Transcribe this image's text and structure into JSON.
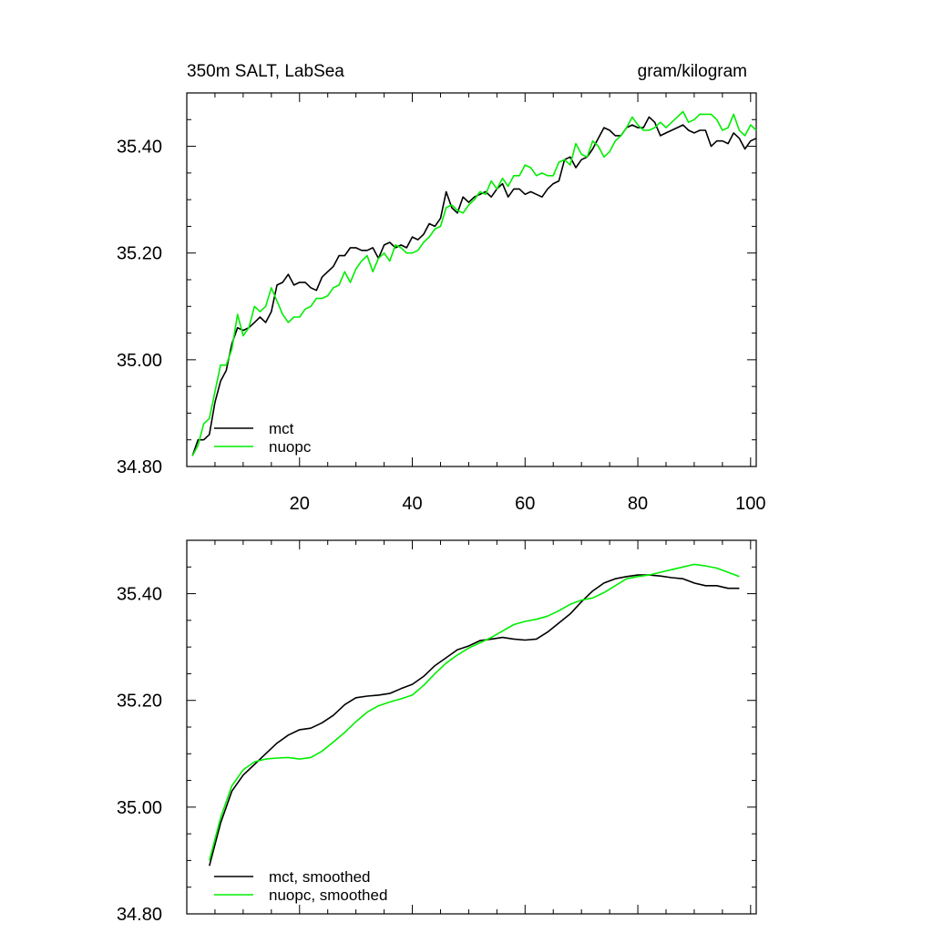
{
  "chart_data": [
    {
      "type": "line",
      "title_left": "350m SALT, LabSea",
      "title_right": "gram/kilogram",
      "xlim": [
        0,
        101
      ],
      "ylim": [
        34.8,
        35.5
      ],
      "xticks": [
        20,
        40,
        60,
        80,
        100
      ],
      "xtick_labels": [
        "20",
        "40",
        "60",
        "80",
        "100"
      ],
      "yticks": [
        34.8,
        35.0,
        35.2,
        35.4
      ],
      "ytick_labels": [
        "34.80",
        "35.00",
        "35.20",
        "35.40"
      ],
      "legend_position": "bottom-left",
      "series": [
        {
          "name": "mct",
          "color": "#000000",
          "x": [
            1,
            2,
            3,
            4,
            5,
            6,
            7,
            8,
            9,
            10,
            11,
            12,
            13,
            14,
            15,
            16,
            17,
            18,
            19,
            20,
            21,
            22,
            23,
            24,
            25,
            26,
            27,
            28,
            29,
            30,
            31,
            32,
            33,
            34,
            35,
            36,
            37,
            38,
            39,
            40,
            41,
            42,
            43,
            44,
            45,
            46,
            47,
            48,
            49,
            50,
            51,
            52,
            53,
            54,
            55,
            56,
            57,
            58,
            59,
            60,
            61,
            62,
            63,
            64,
            65,
            66,
            67,
            68,
            69,
            70,
            71,
            72,
            73,
            74,
            75,
            76,
            77,
            78,
            79,
            80,
            81,
            82,
            83,
            84,
            85,
            86,
            87,
            88,
            89,
            90,
            91,
            92,
            93,
            94,
            95,
            96,
            97,
            98,
            99,
            100,
            101
          ],
          "values": [
            34.82,
            34.85,
            34.85,
            34.86,
            34.92,
            34.96,
            34.98,
            35.03,
            35.06,
            35.055,
            35.06,
            35.07,
            35.08,
            35.07,
            35.09,
            35.14,
            35.145,
            35.16,
            35.14,
            35.145,
            35.145,
            35.135,
            35.13,
            35.155,
            35.165,
            35.175,
            35.195,
            35.195,
            35.21,
            35.21,
            35.205,
            35.205,
            35.21,
            35.19,
            35.215,
            35.22,
            35.21,
            35.215,
            35.21,
            35.23,
            35.225,
            35.235,
            35.255,
            35.25,
            35.265,
            35.315,
            35.285,
            35.275,
            35.305,
            35.295,
            35.305,
            35.31,
            35.315,
            35.305,
            35.32,
            35.33,
            35.305,
            35.32,
            35.32,
            35.31,
            35.315,
            35.31,
            35.305,
            35.32,
            35.33,
            35.335,
            35.375,
            35.38,
            35.36,
            35.375,
            35.38,
            35.395,
            35.415,
            35.435,
            35.43,
            35.42,
            35.42,
            35.435,
            35.44,
            35.435,
            35.435,
            35.455,
            35.445,
            35.42,
            35.425,
            35.43,
            35.435,
            35.44,
            35.43,
            35.425,
            35.43,
            35.43,
            35.4,
            35.41,
            35.41,
            35.405,
            35.425,
            35.415,
            35.395,
            35.41,
            35.415
          ]
        },
        {
          "name": "nuopc",
          "color": "#00ee00",
          "x": [
            1,
            2,
            3,
            4,
            5,
            6,
            7,
            8,
            9,
            10,
            11,
            12,
            13,
            14,
            15,
            16,
            17,
            18,
            19,
            20,
            21,
            22,
            23,
            24,
            25,
            26,
            27,
            28,
            29,
            30,
            31,
            32,
            33,
            34,
            35,
            36,
            37,
            38,
            39,
            40,
            41,
            42,
            43,
            44,
            45,
            46,
            47,
            48,
            49,
            50,
            51,
            52,
            53,
            54,
            55,
            56,
            57,
            58,
            59,
            60,
            61,
            62,
            63,
            64,
            65,
            66,
            67,
            68,
            69,
            70,
            71,
            72,
            73,
            74,
            75,
            76,
            77,
            78,
            79,
            80,
            81,
            82,
            83,
            84,
            85,
            86,
            87,
            88,
            89,
            90,
            91,
            92,
            93,
            94,
            95,
            96,
            97,
            98,
            99,
            100,
            101
          ],
          "values": [
            34.82,
            34.84,
            34.88,
            34.89,
            34.94,
            34.99,
            34.99,
            35.02,
            35.085,
            35.045,
            35.06,
            35.1,
            35.09,
            35.1,
            35.135,
            35.11,
            35.085,
            35.07,
            35.08,
            35.08,
            35.095,
            35.1,
            35.115,
            35.115,
            35.12,
            35.135,
            35.14,
            35.165,
            35.145,
            35.17,
            35.185,
            35.195,
            35.165,
            35.19,
            35.2,
            35.185,
            35.215,
            35.21,
            35.2,
            35.2,
            35.205,
            35.22,
            35.23,
            35.245,
            35.25,
            35.285,
            35.29,
            35.28,
            35.275,
            35.29,
            35.3,
            35.315,
            35.31,
            35.335,
            35.32,
            35.34,
            35.325,
            35.345,
            35.345,
            35.365,
            35.36,
            35.345,
            35.35,
            35.345,
            35.345,
            35.37,
            35.375,
            35.365,
            35.405,
            35.385,
            35.38,
            35.41,
            35.4,
            35.38,
            35.39,
            35.41,
            35.42,
            35.435,
            35.455,
            35.44,
            35.43,
            35.43,
            35.435,
            35.445,
            35.435,
            35.445,
            35.455,
            35.465,
            35.445,
            35.45,
            35.46,
            35.46,
            35.46,
            35.45,
            35.43,
            35.435,
            35.46,
            35.43,
            35.42,
            35.44,
            35.43
          ]
        }
      ]
    },
    {
      "type": "line",
      "xlim": [
        0,
        101
      ],
      "ylim": [
        34.8,
        35.5
      ],
      "xticks": [
        20,
        40,
        60,
        80,
        100
      ],
      "yticks": [
        34.8,
        35.0,
        35.2,
        35.4
      ],
      "ytick_labels": [
        "34.80",
        "35.00",
        "35.20",
        "35.40"
      ],
      "legend_position": "bottom-left",
      "series": [
        {
          "name": "mct, smoothed",
          "color": "#000000",
          "x": [
            4,
            6,
            8,
            10,
            12,
            14,
            16,
            18,
            20,
            22,
            24,
            26,
            28,
            30,
            32,
            34,
            36,
            38,
            40,
            42,
            44,
            46,
            48,
            50,
            52,
            54,
            56,
            58,
            60,
            62,
            64,
            66,
            68,
            70,
            72,
            74,
            76,
            78,
            80,
            82,
            84,
            86,
            88,
            90,
            92,
            94,
            96,
            98
          ],
          "values": [
            34.89,
            34.97,
            35.03,
            35.06,
            35.08,
            35.1,
            35.12,
            35.135,
            35.145,
            35.148,
            35.158,
            35.172,
            35.192,
            35.205,
            35.208,
            35.21,
            35.213,
            35.222,
            35.23,
            35.245,
            35.265,
            35.28,
            35.295,
            35.302,
            35.312,
            35.315,
            35.318,
            35.315,
            35.313,
            35.315,
            35.328,
            35.345,
            35.362,
            35.385,
            35.405,
            35.42,
            35.428,
            35.432,
            35.435,
            35.435,
            35.433,
            35.43,
            35.428,
            35.42,
            35.415,
            35.415,
            35.41,
            35.41
          ]
        },
        {
          "name": "nuopc, smoothed",
          "color": "#00ee00",
          "x": [
            4,
            6,
            8,
            10,
            12,
            14,
            16,
            18,
            20,
            22,
            24,
            26,
            28,
            30,
            32,
            34,
            36,
            38,
            40,
            42,
            44,
            46,
            48,
            50,
            52,
            54,
            56,
            58,
            60,
            62,
            64,
            66,
            68,
            70,
            72,
            74,
            76,
            78,
            80,
            82,
            84,
            86,
            88,
            90,
            92,
            94,
            96,
            98
          ],
          "values": [
            34.9,
            34.98,
            35.04,
            35.07,
            35.085,
            35.09,
            35.092,
            35.093,
            35.09,
            35.093,
            35.105,
            35.122,
            35.14,
            35.16,
            35.178,
            35.19,
            35.197,
            35.203,
            35.21,
            35.228,
            35.25,
            35.27,
            35.285,
            35.298,
            35.308,
            35.318,
            35.33,
            35.342,
            35.348,
            35.352,
            35.358,
            35.368,
            35.38,
            35.388,
            35.392,
            35.402,
            35.415,
            35.428,
            35.432,
            35.435,
            35.44,
            35.445,
            35.45,
            35.455,
            35.452,
            35.448,
            35.44,
            35.432
          ]
        }
      ]
    }
  ]
}
